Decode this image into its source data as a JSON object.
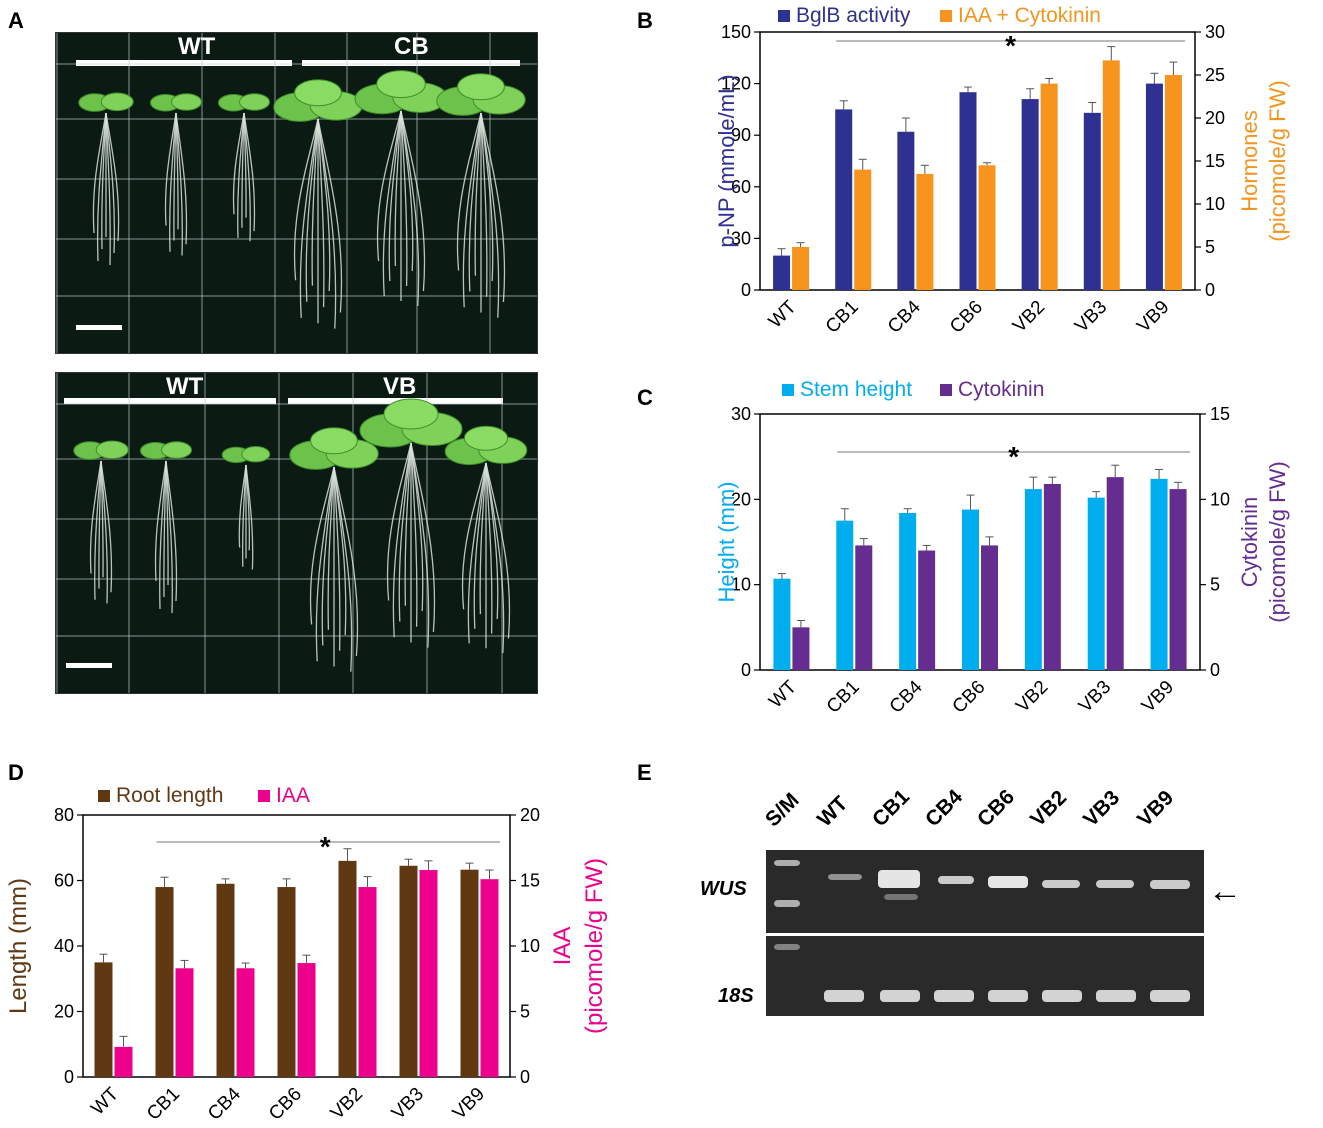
{
  "panels": {
    "A": {
      "letter": "A",
      "top_groups": [
        "WT",
        "CB"
      ],
      "bottom_groups": [
        "WT",
        "VB"
      ]
    },
    "B": {
      "letter": "B"
    },
    "C": {
      "letter": "C"
    },
    "D": {
      "letter": "D"
    },
    "E": {
      "letter": "E",
      "lanes": [
        "S/M",
        "WT",
        "CB1",
        "CB4",
        "CB6",
        "VB2",
        "VB3",
        "VB9"
      ],
      "genes": [
        "WUS",
        "18S"
      ],
      "arrow": "←"
    }
  },
  "colors": {
    "navy": "#2e3192",
    "orange": "#f7941d",
    "cyan": "#00aeef",
    "purple": "#662d91",
    "brown": "#603913",
    "magenta": "#ec008c"
  },
  "chart_data": [
    {
      "id": "B",
      "type": "bar",
      "categories": [
        "WT",
        "CB1",
        "CB4",
        "CB6",
        "VB2",
        "VB3",
        "VB9"
      ],
      "series": [
        {
          "name": "BglB activity",
          "axis": "left",
          "values": [
            20,
            105,
            92,
            115,
            111,
            103,
            120
          ],
          "errors": [
            4,
            5,
            8,
            3,
            6,
            6,
            6
          ]
        },
        {
          "name": "IAA + Cytokinin",
          "axis": "right",
          "values": [
            5,
            14,
            13.5,
            14.5,
            24,
            26.7,
            25
          ],
          "errors": [
            0.5,
            1.2,
            1,
            0.3,
            0.6,
            1.6,
            1.5
          ]
        }
      ],
      "ylabel": "p-NP (mmole/mL)",
      "y2label_line1": "Hormones",
      "y2label_line2": "(picomole/g FW)",
      "ylim": [
        0,
        150
      ],
      "y2lim": [
        0,
        30
      ],
      "yticks": [
        0,
        30,
        60,
        90,
        120,
        150
      ],
      "y2ticks": [
        0,
        5,
        10,
        15,
        20,
        25,
        30
      ],
      "significance": "*"
    },
    {
      "id": "C",
      "type": "bar",
      "categories": [
        "WT",
        "CB1",
        "CB4",
        "CB6",
        "VB2",
        "VB3",
        "VB9"
      ],
      "series": [
        {
          "name": "Stem height",
          "axis": "left",
          "values": [
            10.7,
            17.5,
            18.4,
            18.8,
            21.2,
            20.2,
            22.4
          ],
          "errors": [
            0.6,
            1.4,
            0.5,
            1.7,
            1.4,
            0.7,
            1.1
          ]
        },
        {
          "name": "Cytokinin",
          "axis": "right",
          "values": [
            2.5,
            7.3,
            7,
            7.3,
            10.9,
            11.3,
            10.6
          ],
          "errors": [
            0.4,
            0.4,
            0.3,
            0.5,
            0.4,
            0.7,
            0.4
          ]
        }
      ],
      "ylabel": "Height (mm)",
      "y2label_line1": "Cytokinin",
      "y2label_line2": "(picomole/g FW)",
      "ylim": [
        0,
        30
      ],
      "y2lim": [
        0,
        15
      ],
      "yticks": [
        0,
        10,
        20,
        30
      ],
      "y2ticks": [
        0,
        5,
        10,
        15
      ],
      "significance": "*"
    },
    {
      "id": "D",
      "type": "bar",
      "categories": [
        "WT",
        "CB1",
        "CB4",
        "CB6",
        "VB2",
        "VB3",
        "VB9"
      ],
      "series": [
        {
          "name": "Root length",
          "axis": "left",
          "values": [
            35,
            58,
            59,
            58,
            66,
            64.5,
            63.3
          ],
          "errors": [
            2.5,
            3,
            1.5,
            2.5,
            3.7,
            2,
            2
          ]
        },
        {
          "name": "IAA",
          "axis": "right",
          "values": [
            2.3,
            8.3,
            8.3,
            8.7,
            14.5,
            15.8,
            15.1
          ],
          "errors": [
            0.8,
            0.6,
            0.4,
            0.6,
            0.8,
            0.7,
            0.7
          ]
        }
      ],
      "ylabel": "Length (mm)",
      "y2label_line1": "IAA",
      "y2label_line2": "(picomole/g FW)",
      "ylim": [
        0,
        80
      ],
      "y2lim": [
        0,
        20
      ],
      "yticks": [
        0,
        20,
        40,
        60,
        80
      ],
      "y2ticks": [
        0,
        5,
        10,
        15,
        20
      ],
      "significance": "*"
    }
  ]
}
